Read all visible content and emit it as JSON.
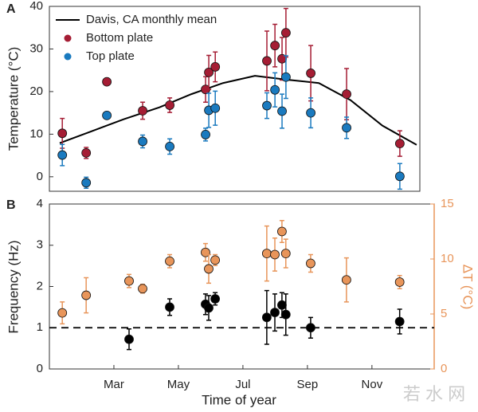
{
  "chart_data": [
    {
      "type": "scatter",
      "panel": "A",
      "ylabel": "Temperature (°C)",
      "xlim": [
        1,
        12.48
      ],
      "ylim": [
        -3.4,
        40
      ],
      "yticks": [
        0,
        10,
        20,
        30,
        40
      ],
      "legend": "upper left",
      "series": [
        {
          "name": "Davis, CA monthly mean",
          "type": "line",
          "color": "#000000",
          "x": [
            1.32,
            2.31,
            3.3,
            4.41,
            5.4,
            6.38,
            7.37,
            8.36,
            9.35,
            10.33,
            11.32,
            12.38
          ],
          "values": [
            7.9,
            10.7,
            13.5,
            16.3,
            19.4,
            22,
            23.7,
            22.8,
            22,
            18,
            12,
            7.5
          ]
        },
        {
          "name": "Bottom plate",
          "color": "#a51d34",
          "x": [
            1.4,
            2.14,
            2.78,
            3.89,
            4.73,
            5.84,
            5.94,
            6.14,
            7.74,
            7.99,
            8.21,
            8.33,
            9.1,
            10.21,
            11.86
          ],
          "values": [
            10.2,
            5.6,
            22.3,
            15.5,
            16.8,
            20.5,
            24.5,
            25.8,
            27.2,
            30.8,
            27.7,
            33.8,
            24.3,
            19.4,
            7.8
          ],
          "errors": [
            3.5,
            1.3,
            0.5,
            2,
            1.7,
            3,
            4,
            3.5,
            7,
            5,
            5,
            5.7,
            6.5,
            6,
            3
          ]
        },
        {
          "name": "Top plate",
          "color": "#1a7abf",
          "x": [
            1.4,
            2.14,
            2.78,
            3.89,
            4.73,
            5.84,
            5.94,
            6.14,
            7.74,
            7.99,
            8.21,
            8.33,
            9.1,
            10.21,
            11.86
          ],
          "values": [
            5.1,
            -1.4,
            14.4,
            8.3,
            7.1,
            9.9,
            15.6,
            16.1,
            16.7,
            20.4,
            15.4,
            23.4,
            15,
            11.5,
            0.1
          ],
          "errors": [
            2.5,
            1.3,
            0.5,
            1.5,
            1.8,
            1.5,
            4,
            4,
            3,
            4,
            4,
            5,
            3.5,
            2.5,
            3
          ]
        }
      ]
    },
    {
      "type": "scatter",
      "panel": "B",
      "xlabel": "Time of year",
      "ylabel": "Frequency (Hz)",
      "y2label": "ΔT (°C)",
      "y2_color": "#e8955a",
      "xlim": [
        1,
        12.93
      ],
      "ylim": [
        0,
        4
      ],
      "yticks": [
        0,
        1,
        2,
        3,
        4
      ],
      "y2lim": [
        0,
        15
      ],
      "y2ticks": [
        0,
        5,
        10,
        15
      ],
      "xticks": [
        {
          "value": 3,
          "label": "Mar"
        },
        {
          "value": 5,
          "label": "May"
        },
        {
          "value": 7,
          "label": "Jul"
        },
        {
          "value": 9,
          "label": "Sep"
        },
        {
          "value": 11,
          "label": "Nov"
        }
      ],
      "hline": 1,
      "series": [
        {
          "color": "#e8955a",
          "axis": "y2",
          "x": [
            1.4,
            2.14,
            3.47,
            3.89,
            4.73,
            5.84,
            5.94,
            6.14,
            7.74,
            7.99,
            8.21,
            8.33,
            9.1,
            10.21,
            11.86
          ],
          "values": [
            5.1,
            6.7,
            8,
            7.3,
            9.8,
            10.6,
            9.1,
            9.9,
            10.5,
            10.4,
            12.5,
            10.5,
            9.6,
            8.1,
            7.9
          ],
          "errors": [
            1,
            1.6,
            0.6,
            0.4,
            0.6,
            0.8,
            1.3,
            0.5,
            2.5,
            1.5,
            1,
            1.3,
            0.8,
            2,
            0.6
          ]
        },
        {
          "color": "#000000",
          "x": [
            3.47,
            4.73,
            5.84,
            5.94,
            6.14,
            7.74,
            7.99,
            8.21,
            8.33,
            9.1,
            11.86
          ],
          "values": [
            0.72,
            1.5,
            1.57,
            1.48,
            1.7,
            1.25,
            1.37,
            1.55,
            1.32,
            1,
            1.15
          ],
          "errors": [
            0.25,
            0.2,
            0.25,
            0.3,
            0.15,
            0.65,
            0.45,
            0.3,
            0.5,
            0.25,
            0.3
          ]
        }
      ]
    }
  ],
  "watermark": "若 水 网"
}
